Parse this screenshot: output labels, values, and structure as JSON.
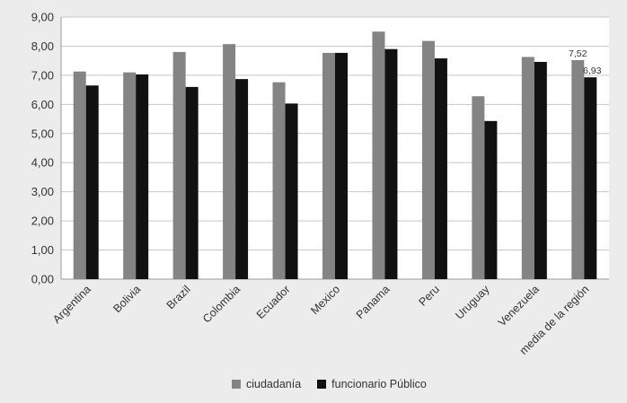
{
  "chart_data": {
    "type": "bar",
    "categories": [
      "Argentina",
      "Bolivia",
      "Brazil",
      "Colombia",
      "Ecuador",
      "Mexico",
      "Panama",
      "Peru",
      "Uruguay",
      "Venezuela",
      "media de la región"
    ],
    "series": [
      {
        "name": "ciudadanía",
        "color": "#848484",
        "values": [
          7.13,
          7.1,
          7.8,
          8.07,
          6.76,
          7.77,
          8.5,
          8.18,
          6.28,
          7.63,
          7.52
        ]
      },
      {
        "name": "funcionario Público",
        "color": "#111111",
        "values": [
          6.65,
          7.03,
          6.6,
          6.87,
          6.03,
          7.77,
          7.9,
          7.58,
          5.43,
          7.46,
          6.93
        ]
      }
    ],
    "ylim": [
      0,
      9
    ],
    "yticks": [
      "0,00",
      "1,00",
      "2,00",
      "3,00",
      "4,00",
      "5,00",
      "6,00",
      "7,00",
      "8,00",
      "9,00"
    ],
    "data_labels": [
      {
        "category": "media de la región",
        "series": "ciudadanía",
        "text": "7,52"
      },
      {
        "category": "media de la región",
        "series": "funcionario Público",
        "text": "6,93"
      }
    ],
    "grid": true,
    "legend_position": "bottom",
    "plot_background": "#ffffff",
    "grid_color": "#c8c8c8"
  },
  "legend": {
    "items": [
      {
        "label": "ciudadanía",
        "color": "#848484"
      },
      {
        "label": "funcionario Público",
        "color": "#111111"
      }
    ]
  }
}
